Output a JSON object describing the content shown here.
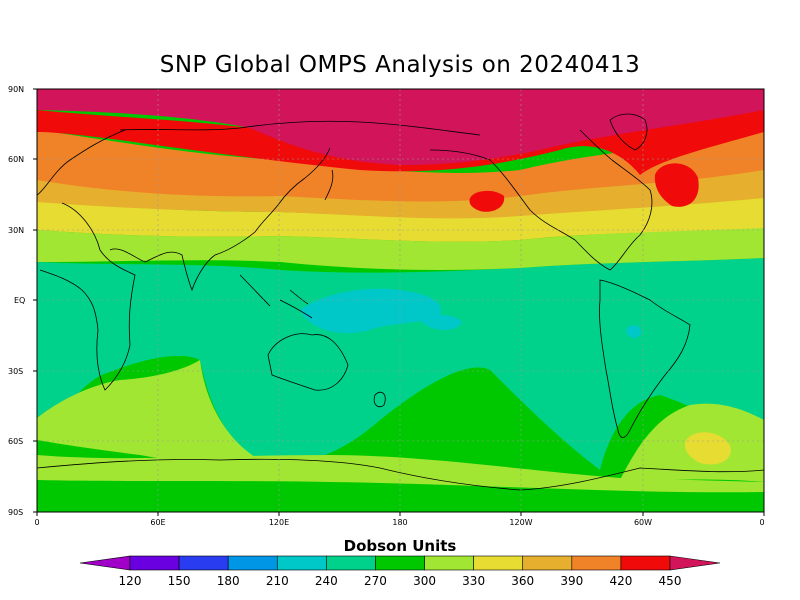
{
  "title": "SNP Global OMPS Analysis on 20240413",
  "colorbar": {
    "title": "Dobson Units",
    "labels": [
      "120",
      "150",
      "180",
      "210",
      "240",
      "270",
      "300",
      "330",
      "360",
      "390",
      "420",
      "450"
    ],
    "colors": [
      "#a000c8",
      "#6a00e0",
      "#2a3cf0",
      "#0096e6",
      "#00c8c8",
      "#00d28c",
      "#00c800",
      "#a0e632",
      "#e6dc32",
      "#e6af2d",
      "#f08228",
      "#f00a0a",
      "#d2145a"
    ]
  },
  "axes": {
    "y_ticks": [
      "90N",
      "60N",
      "30N",
      "EQ",
      "30S",
      "60S",
      "90S"
    ],
    "x_ticks": [
      "0",
      "60E",
      "120E",
      "180",
      "120W",
      "60W",
      "0"
    ]
  }
}
